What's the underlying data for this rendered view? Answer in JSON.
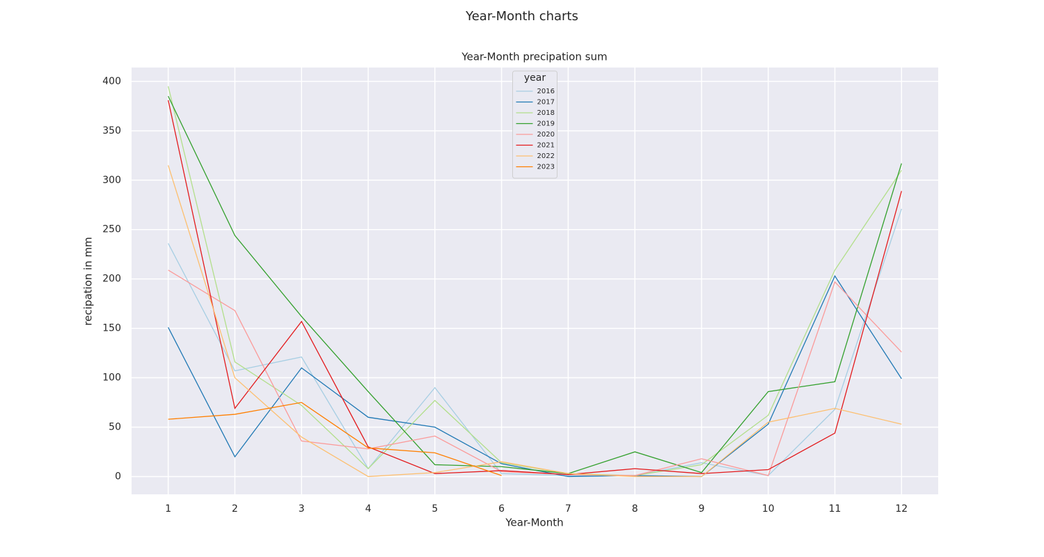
{
  "chart_data": {
    "type": "line",
    "suptitle": "Year-Month charts",
    "title": "Year-Month precipation sum",
    "xlabel": "Year-Month",
    "ylabel": "recipation in mm",
    "legend_title": "year",
    "legend_loc": "upper center",
    "grid": true,
    "x": [
      1,
      2,
      3,
      4,
      5,
      6,
      7,
      8,
      9,
      10,
      11,
      12
    ],
    "xlim": [
      0.45,
      12.55
    ],
    "xticks": [
      1,
      2,
      3,
      4,
      5,
      6,
      7,
      8,
      9,
      10,
      11,
      12
    ],
    "ylim": [
      -18,
      414
    ],
    "yticks": [
      0,
      50,
      100,
      150,
      200,
      250,
      300,
      350,
      400
    ],
    "series": [
      {
        "name": "2016",
        "color": "#a6cee3",
        "values": [
          236,
          107,
          121,
          8,
          90,
          3,
          1,
          1,
          14,
          1,
          68,
          271
        ]
      },
      {
        "name": "2017",
        "color": "#1f78b4",
        "values": [
          151,
          20,
          110,
          60,
          50,
          13,
          0,
          1,
          0,
          53,
          203,
          99
        ]
      },
      {
        "name": "2018",
        "color": "#b2df8a",
        "values": [
          395,
          116,
          72,
          8,
          77,
          14,
          3,
          1,
          12,
          62,
          209,
          310
        ]
      },
      {
        "name": "2019",
        "color": "#33a02c",
        "values": [
          385,
          244,
          162,
          86,
          12,
          10,
          3,
          25,
          4,
          86,
          96,
          317
        ]
      },
      {
        "name": "2020",
        "color": "#fb9a99",
        "values": [
          209,
          168,
          36,
          28,
          41,
          5,
          2,
          1,
          18,
          1,
          197,
          126
        ]
      },
      {
        "name": "2021",
        "color": "#e31a1c",
        "values": [
          381,
          69,
          157,
          30,
          3,
          6,
          2,
          8,
          3,
          7,
          44,
          289
        ]
      },
      {
        "name": "2022",
        "color": "#fdbf6f",
        "values": [
          315,
          100,
          40,
          0,
          4,
          15,
          3,
          0,
          0,
          55,
          69,
          53
        ]
      },
      {
        "name": "2023",
        "color": "#ff7f00",
        "values": [
          58,
          63,
          75,
          29,
          24,
          1,
          null,
          null,
          null,
          null,
          null,
          null
        ]
      }
    ]
  }
}
